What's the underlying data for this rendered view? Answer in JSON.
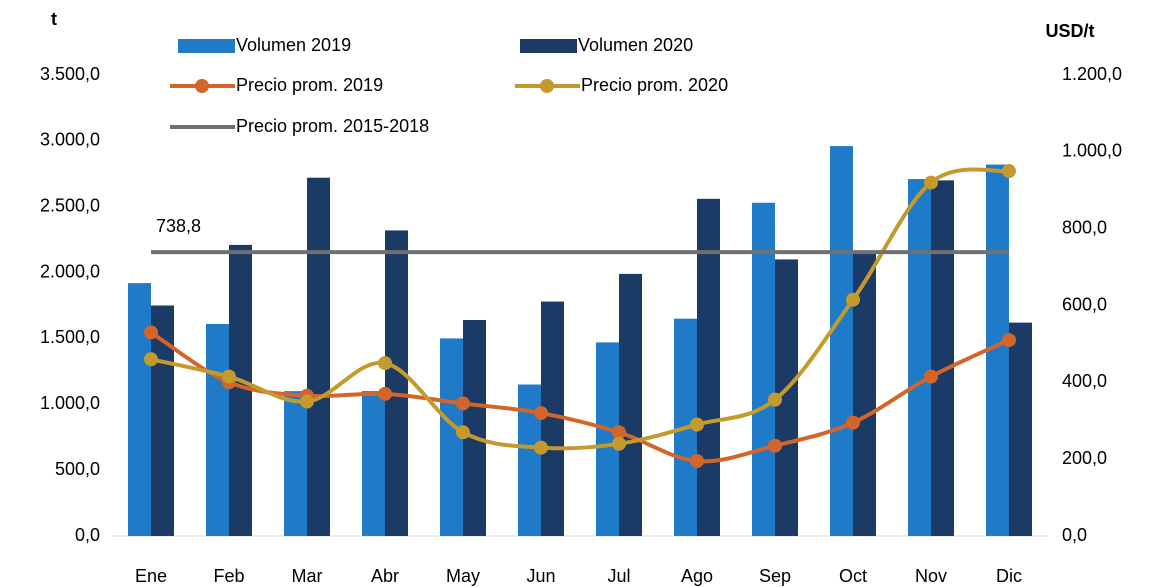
{
  "chart_data": {
    "type": "bar_line",
    "y_label": "t",
    "y2_label": "USD/t",
    "categories": [
      "Ene",
      "Feb",
      "Mar",
      "Abr",
      "May",
      "Jun",
      "Jul",
      "Ago",
      "Sep",
      "Oct",
      "Nov",
      "Dic"
    ],
    "series": [
      {
        "name": "Volumen 2019",
        "type": "bar",
        "color": "#1f7bc8",
        "values": [
          1920,
          1610,
          1100,
          1100,
          1500,
          1150,
          1470,
          1650,
          2530,
          2960,
          2710,
          2820
        ]
      },
      {
        "name": "Volumen 2020",
        "type": "bar",
        "color": "#1b3a66",
        "values": [
          1750,
          2210,
          2720,
          2320,
          1640,
          1780,
          1990,
          2560,
          2100,
          2150,
          2700,
          1620
        ]
      },
      {
        "name": "Precio prom. 2019",
        "type": "line",
        "axis": "y2",
        "color": "#d4652a",
        "values": [
          530,
          400,
          365,
          370,
          345,
          320,
          270,
          195,
          235,
          295,
          415,
          510
        ]
      },
      {
        "name": "Precio prom. 2020",
        "type": "line",
        "axis": "y2",
        "color": "#c49a2c",
        "values": [
          460,
          415,
          350,
          450,
          270,
          230,
          240,
          290,
          355,
          615,
          920,
          950
        ]
      },
      {
        "name": "Precio prom. 2015-2018",
        "type": "hline",
        "axis": "y2",
        "color": "#707070",
        "value": 738.8,
        "value_label": "738,8"
      }
    ],
    "ylim": [
      0,
      3500
    ],
    "yticks": [
      {
        "value": 0,
        "label": "0,0"
      },
      {
        "value": 500,
        "label": "500,0"
      },
      {
        "value": 1000,
        "label": "1.000,0"
      },
      {
        "value": 1500,
        "label": "1.500,0"
      },
      {
        "value": 2000,
        "label": "2.000,0"
      },
      {
        "value": 2500,
        "label": "2.500,0"
      },
      {
        "value": 3000,
        "label": "3.000,0"
      },
      {
        "value": 3500,
        "label": "3.500,0"
      }
    ],
    "y2lim": [
      0,
      1200
    ],
    "y2ticks": [
      {
        "value": 0,
        "label": "0,0"
      },
      {
        "value": 200,
        "label": "200,0"
      },
      {
        "value": 400,
        "label": "400,0"
      },
      {
        "value": 600,
        "label": "600,0"
      },
      {
        "value": 800,
        "label": "800,0"
      },
      {
        "value": 1000,
        "label": "1.000,0"
      },
      {
        "value": 1200,
        "label": "1.200,0"
      }
    ],
    "grid": false
  }
}
